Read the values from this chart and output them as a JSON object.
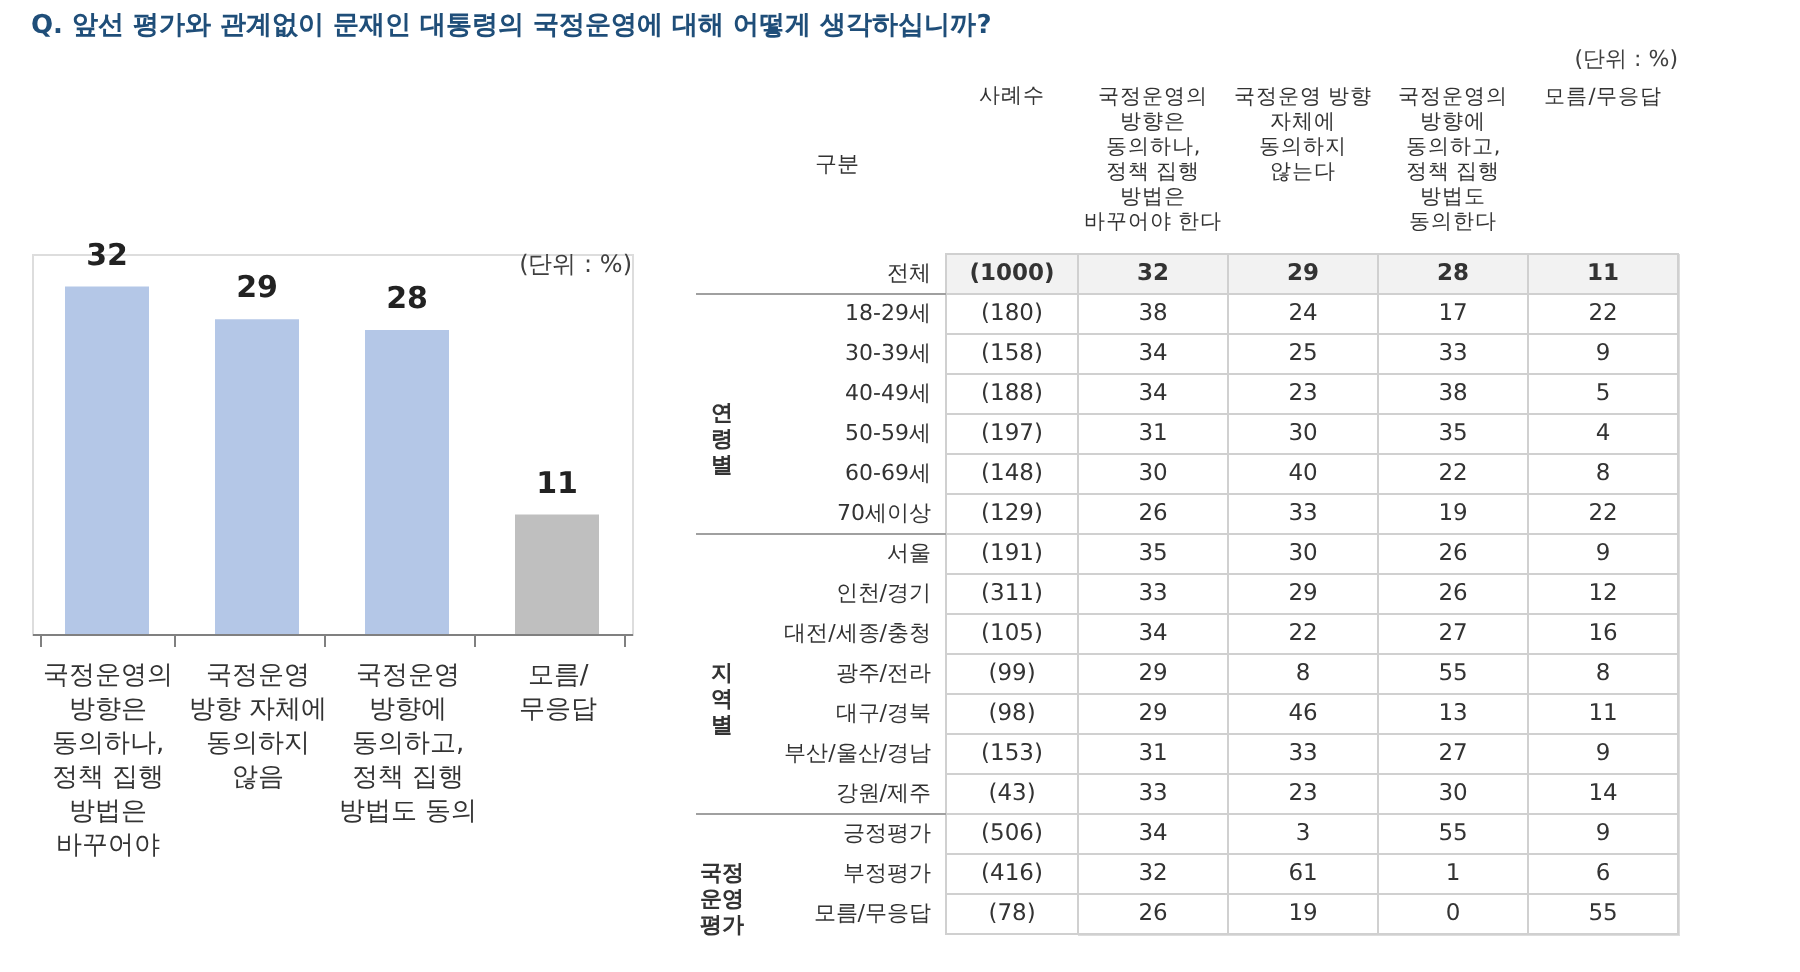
{
  "chart_data": [
    {
      "type": "bar",
      "title": "Q. 앞선 평가와 관계없이 문재인 대통령의 국정운영에 대해 어떻게 생각하십니까?",
      "annotations": [
        "(단위 : %)"
      ],
      "categories": [
        "국정운영의 방향은 동의하나, 정책 집행 방법은 바꾸어야",
        "국정운영 방향 자체에 동의하지 않음",
        "국정운영 방향에 동의하고, 정책 집행 방법도 동의",
        "모름/무응답"
      ],
      "values": [
        32,
        29,
        28,
        11
      ],
      "colors": [
        "#b4c7e7",
        "#b4c7e7",
        "#b4c7e7",
        "#bfbfbf"
      ],
      "data_labels": true
    },
    {
      "type": "heatmap",
      "ylabel": "구분",
      "data_labels": true,
      "annotations": [
        "(단위 : %)",
        "연령별",
        "지역별",
        "국정운영평가"
      ],
      "y2label": "사례수",
      "y2_categories": [
        "(1000)",
        "(180)",
        "(158)",
        "(188)",
        "(197)",
        "(148)",
        "(129)",
        "(191)",
        "(311)",
        "(105)",
        "(99)",
        "(98)",
        "(153)",
        "(43)",
        "(506)",
        "(416)",
        "(78)"
      ],
      "categories": [
        "국정운영의 방향은 동의하나, 정책 집행 방법은 바꾸어야 한다",
        "국정운영 방향 자체에 동의하지 않는다",
        "국정운영의 방향에 동의하고, 정책 집행 방법도 동의한다",
        "모름/무응답"
      ],
      "y_categories": [
        "전체",
        "18-29세",
        "30-39세",
        "40-49세",
        "50-59세",
        "60-69세",
        "70세이상",
        "서울",
        "인천/경기",
        "대전/세종/충청",
        "광주/전라",
        "대구/경북",
        "부산/울산/경남",
        "강원/제주",
        "긍정평가",
        "부정평가",
        "모름/무응답"
      ],
      "cells": [
        [
          32,
          29,
          28,
          11
        ],
        [
          38,
          24,
          17,
          22
        ],
        [
          34,
          25,
          33,
          9
        ],
        [
          34,
          23,
          38,
          5
        ],
        [
          31,
          30,
          35,
          4
        ],
        [
          30,
          40,
          22,
          8
        ],
        [
          26,
          33,
          19,
          22
        ],
        [
          35,
          30,
          26,
          9
        ],
        [
          33,
          29,
          26,
          12
        ],
        [
          34,
          22,
          27,
          16
        ],
        [
          29,
          8,
          55,
          8
        ],
        [
          29,
          46,
          13,
          11
        ],
        [
          31,
          33,
          27,
          9
        ],
        [
          33,
          23,
          30,
          14
        ],
        [
          34,
          3,
          55,
          9
        ],
        [
          32,
          61,
          1,
          6
        ],
        [
          26,
          19,
          0,
          55
        ]
      ]
    }
  ]
}
